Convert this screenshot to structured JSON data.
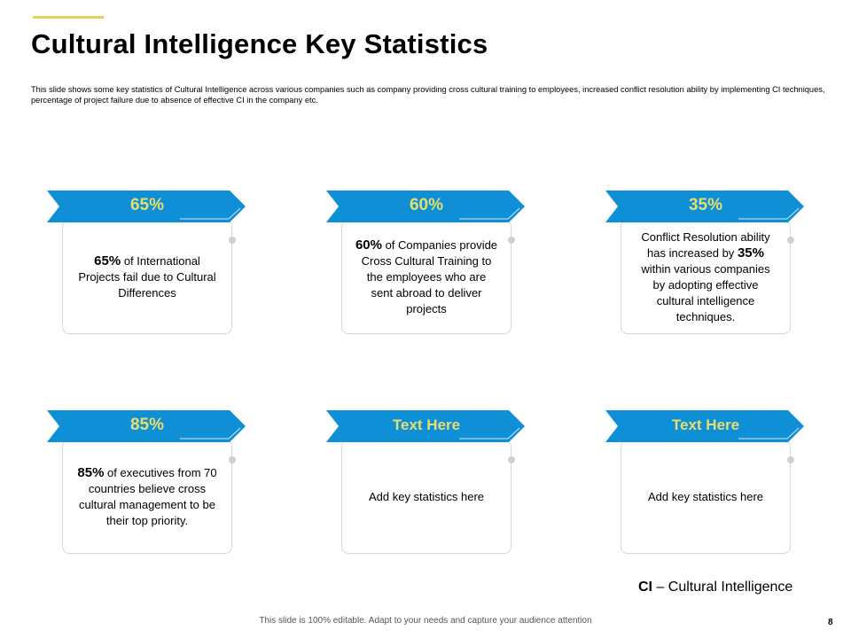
{
  "title": "Cultural Intelligence Key Statistics",
  "description": "This slide shows some key statistics of Cultural Intelligence across various companies such as company providing cross cultural training to employees, increased conflict resolution ability by implementing CI techniques, percentage of project failure due to absence of effective CI in the company etc.",
  "colors": {
    "banner": "#0f8fd6",
    "banner_text": "#e6df6c",
    "accent": "#e3d35a"
  },
  "cards": [
    {
      "header": "65%",
      "bold": "65%",
      "text": " of International Projects fail due to Cultural Differences"
    },
    {
      "header": "60%",
      "bold": "60%",
      "text": " of Companies provide Cross Cultural Training to the employees who are sent abroad to deliver projects"
    },
    {
      "header": "35%",
      "pre": "Conflict Resolution ability has increased by ",
      "bold": "35%",
      "text": " within various companies by adopting effective cultural intelligence techniques."
    },
    {
      "header": "85%",
      "bold": "85%",
      "text": " of executives from 70 countries believe cross cultural management to be their top priority."
    },
    {
      "header": "Text Here",
      "text": "Add key statistics here"
    },
    {
      "header": "Text Here",
      "text": "Add key statistics here"
    }
  ],
  "legend": {
    "abbr": "CI",
    "text": " – Cultural Intelligence"
  },
  "footer": "This slide is 100% editable. Adapt to your needs and capture your audience attention",
  "page_number": "8"
}
